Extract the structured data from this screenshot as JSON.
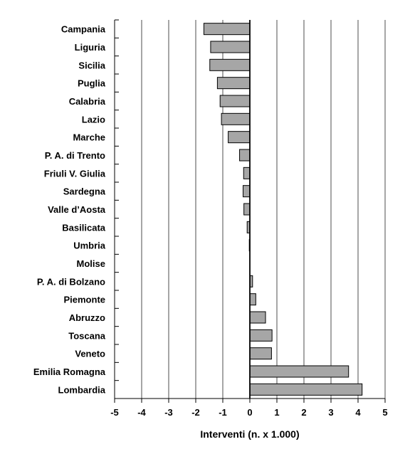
{
  "chart_data": {
    "type": "bar",
    "orientation": "horizontal",
    "categories": [
      "Campania",
      "Liguria",
      "Sicilia",
      "Puglia",
      "Calabria",
      "Lazio",
      "Marche",
      "P. A. di Trento",
      "Friuli V. Giulia",
      "Sardegna",
      "Valle d’Aosta",
      "Basilicata",
      "Umbria",
      "Molise",
      "P. A. di Bolzano",
      "Piemonte",
      "Abruzzo",
      "Toscana",
      "Veneto",
      "Emilia Romagna",
      "Lombardia"
    ],
    "values": [
      -1.7,
      -1.45,
      -1.48,
      -1.2,
      -1.1,
      -1.05,
      -0.8,
      -0.38,
      -0.23,
      -0.25,
      -0.22,
      -0.1,
      -0.02,
      0.0,
      0.1,
      0.22,
      0.58,
      0.82,
      0.8,
      3.65,
      4.15
    ],
    "xlabel": "Interventi (n. x 1.000)",
    "ylabel": "",
    "xlim": [
      -5,
      5
    ],
    "xticks": [
      "-5",
      "-4",
      "-3",
      "-2",
      "-1",
      "0",
      "1",
      "2",
      "3",
      "4",
      "5"
    ],
    "grid": "vertical",
    "bar_color": "#a6a6a6"
  }
}
